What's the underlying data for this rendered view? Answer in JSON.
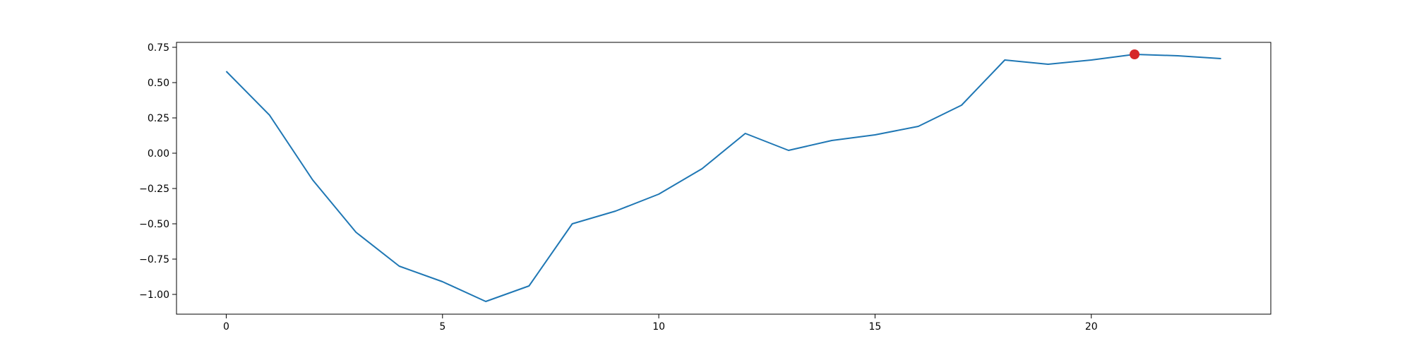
{
  "chart_data": {
    "type": "line",
    "title": "",
    "xlabel": "",
    "ylabel": "",
    "xlim": [
      -1.15,
      24.15
    ],
    "ylim": [
      -1.14,
      0.785
    ],
    "x_ticks": [
      0,
      5,
      10,
      15,
      20
    ],
    "y_ticks": [
      -1.0,
      -0.75,
      -0.5,
      -0.25,
      0.0,
      0.25,
      0.5,
      0.75
    ],
    "x_tick_labels": [
      "0",
      "5",
      "10",
      "15",
      "20"
    ],
    "y_tick_labels": [
      "−1.00",
      "−0.75",
      "−0.50",
      "−0.25",
      "0.00",
      "0.25",
      "0.50",
      "0.75"
    ],
    "grid": false,
    "series": [
      {
        "color": "#1f77b4",
        "x": [
          0,
          1,
          2,
          3,
          4,
          5,
          6,
          7,
          8,
          9,
          10,
          11,
          12,
          13,
          14,
          15,
          16,
          17,
          18,
          19,
          20,
          21,
          22,
          23
        ],
        "y": [
          0.58,
          0.27,
          -0.19,
          -0.56,
          -0.8,
          -0.91,
          -1.05,
          -0.94,
          -0.5,
          -0.41,
          -0.29,
          -0.11,
          0.14,
          0.02,
          0.09,
          0.13,
          0.19,
          0.34,
          0.66,
          0.63,
          0.66,
          0.7,
          0.69,
          0.67
        ]
      }
    ],
    "highlight_point": {
      "x": 21,
      "y": 0.7,
      "color": "#d62728"
    }
  }
}
